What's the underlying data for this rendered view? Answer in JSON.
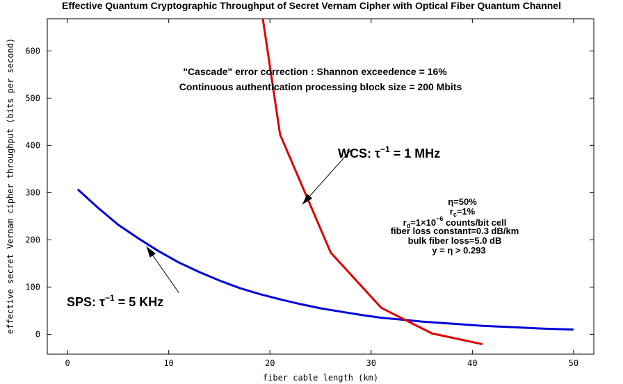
{
  "chart_data": {
    "type": "line",
    "title": "Effective Quantum Cryptographic Throughput of Secret Vernam Cipher with Optical Fiber Quantum Channel",
    "xlabel": "fiber cable length (km)",
    "ylabel": "effective secret Vernam cipher throughput (bits per second)",
    "xlim": [
      -2,
      52
    ],
    "ylim": [
      -42,
      668
    ],
    "xticks": [
      0,
      10,
      20,
      30,
      40,
      50
    ],
    "yticks": [
      0,
      100,
      200,
      300,
      400,
      500,
      600
    ],
    "grid": false,
    "series": [
      {
        "color": "#0000dd",
        "x": [
          1,
          3,
          5,
          7,
          9,
          11,
          13,
          15,
          17,
          19,
          21,
          23,
          25,
          27,
          29,
          31,
          33,
          35,
          37,
          39,
          41,
          43,
          45,
          47,
          50
        ],
        "y": [
          307,
          268,
          232,
          203,
          176,
          152,
          132,
          114,
          98,
          85,
          74,
          64,
          55,
          48,
          41,
          35,
          31,
          27,
          24,
          21,
          18,
          16,
          14,
          12,
          10
        ]
      },
      {
        "color": "#dd0000",
        "x": [
          19.3,
          21,
          26,
          31,
          36,
          41
        ],
        "y": [
          668,
          423,
          173,
          56,
          2,
          -21
        ]
      }
    ],
    "annotations": {
      "note_line1": "\"Cascade\" error  correction  : Shannon exceedence = 16%",
      "note_line2": "Continuous  authentication  processing  block size = 200 Mbits",
      "wcs_label": "WCS: τ",
      "wcs_sup": "−1",
      "wcs_rest": " = 1 MHz",
      "sps_label": "SPS: τ",
      "sps_sup": "−1",
      "sps_rest": " = 5 KHz",
      "p_eta": "η=50%",
      "p_rc_a": "r",
      "p_rc_sub": "c",
      "p_rc_b": "=1%",
      "p_rd_a": "r",
      "p_rd_sub": "d",
      "p_rd_b": "=1×10",
      "p_rd_sup": "−6",
      "p_rd_c": " counts/bit cell",
      "p_loss": "fiber loss constant=0.3 dB/km",
      "p_bulk": "bulk fiber loss=5.0 dB",
      "p_y": "y = η > 0.293"
    },
    "arrows": [
      {
        "from": [
          11,
          88
        ],
        "to": [
          7.8,
          186
        ]
      },
      {
        "from": [
          28,
          390
        ],
        "to": [
          23.2,
          275
        ]
      }
    ]
  }
}
